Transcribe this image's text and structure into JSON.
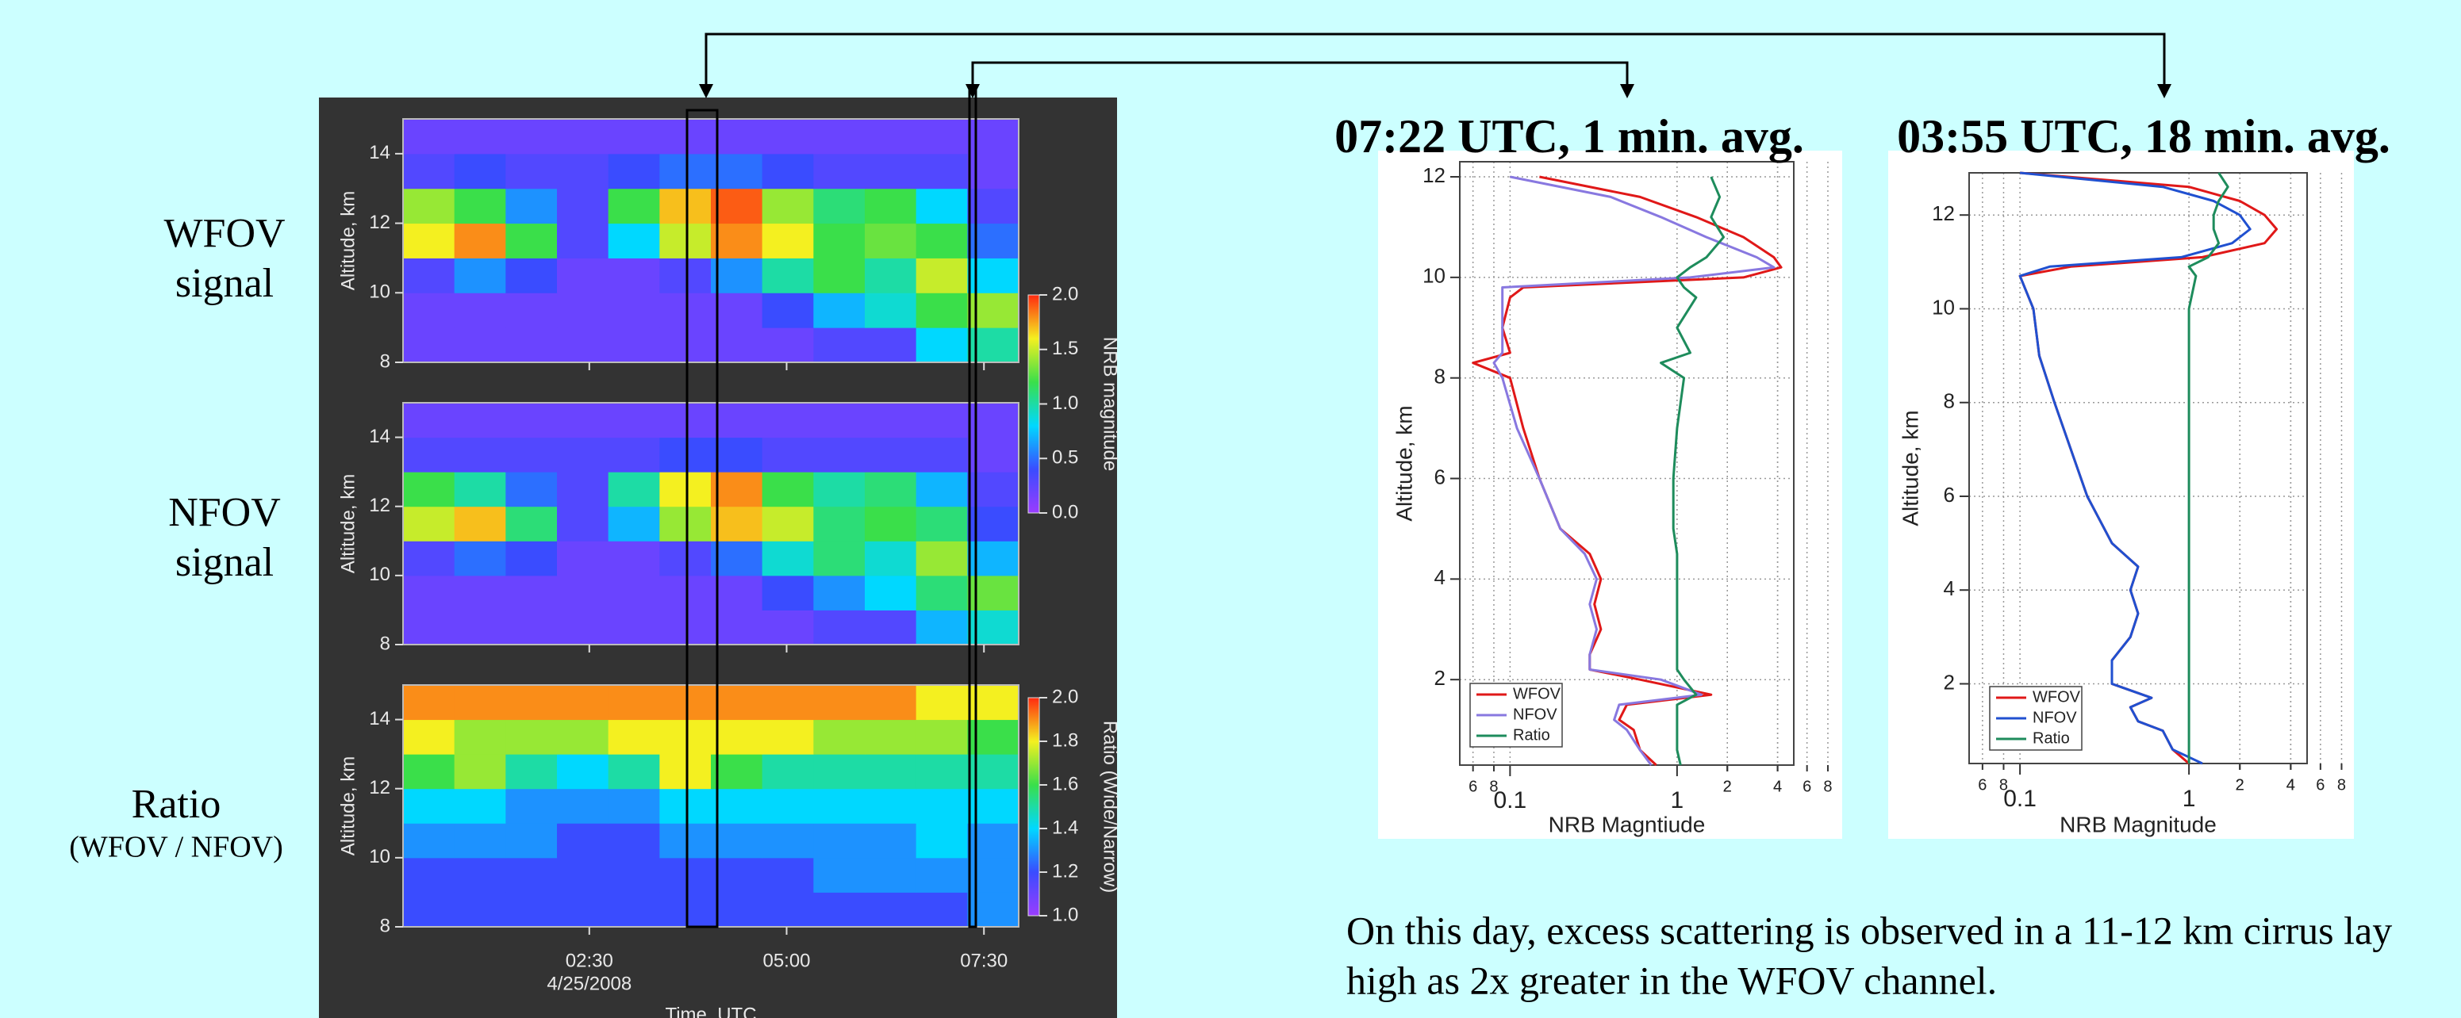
{
  "row_labels": [
    [
      "WFOV",
      "signal"
    ],
    [
      "NFOV",
      "signal"
    ],
    [
      "Ratio",
      "(WFOV / NFOV)"
    ]
  ],
  "caption": [
    "On this day, excess scattering is observed in a 11-12 km cirrus lay",
    "high as 2x greater in the WFOV channel."
  ],
  "chart_data": [
    {
      "type": "heatmap",
      "ylabel": "Altitude, km",
      "xlim": [
        0.14,
        7.94
      ],
      "ylim": [
        8,
        15
      ],
      "yticks": [
        8,
        10,
        12,
        14
      ],
      "xbins": [
        0.14,
        0.79,
        1.44,
        2.09,
        2.74,
        3.39,
        4.04,
        4.69,
        5.34,
        5.99,
        6.64,
        7.29,
        7.94
      ],
      "ybins": [
        8,
        9,
        10,
        11,
        12,
        13,
        14,
        15
      ],
      "clim": [
        0,
        2
      ],
      "colormap": [
        "#9a3cff",
        "#3a4cff",
        "#00d8ff",
        "#3adf4a",
        "#f4f020",
        "#ff2a10"
      ],
      "colorbar": {
        "label": "NRB magnitude",
        "ticks": [
          {
            "value": 0,
            "label": "0.0"
          },
          0.5,
          {
            "value": 1,
            "label": "1.0"
          },
          1.5,
          {
            "value": 2,
            "label": "2.0"
          }
        ]
      },
      "z": [
        [
          0.2,
          0.2,
          0.2,
          0.2,
          0.2,
          0.2,
          0.2,
          0.2,
          0.3,
          0.3,
          0.8,
          1.0
        ],
        [
          0.2,
          0.2,
          0.2,
          0.2,
          0.2,
          0.2,
          0.2,
          0.4,
          0.7,
          0.9,
          1.2,
          1.4
        ],
        [
          0.3,
          0.6,
          0.4,
          0.2,
          0.2,
          0.3,
          0.6,
          1.0,
          1.2,
          1.0,
          1.5,
          0.8
        ],
        [
          1.6,
          1.8,
          1.2,
          0.3,
          0.8,
          1.5,
          1.8,
          1.6,
          1.2,
          1.3,
          1.2,
          0.5
        ],
        [
          1.4,
          1.2,
          0.6,
          0.3,
          1.2,
          1.7,
          1.9,
          1.4,
          1.1,
          1.2,
          0.8,
          0.3
        ],
        [
          0.3,
          0.4,
          0.3,
          0.3,
          0.4,
          0.5,
          0.5,
          0.4,
          0.3,
          0.3,
          0.3,
          0.2
        ],
        [
          0.2,
          0.2,
          0.2,
          0.2,
          0.2,
          0.2,
          0.2,
          0.2,
          0.2,
          0.2,
          0.2,
          0.2
        ]
      ]
    },
    {
      "type": "heatmap",
      "ylabel": "Altitude, km",
      "xlim": [
        0.14,
        7.94
      ],
      "ylim": [
        8,
        15
      ],
      "yticks": [
        8,
        10,
        12,
        14
      ],
      "xbins": [
        0.14,
        0.79,
        1.44,
        2.09,
        2.74,
        3.39,
        4.04,
        4.69,
        5.34,
        5.99,
        6.64,
        7.29,
        7.94
      ],
      "ybins": [
        8,
        9,
        10,
        11,
        12,
        13,
        14,
        15
      ],
      "clim": [
        0,
        2
      ],
      "colormap": [
        "#9a3cff",
        "#3a4cff",
        "#00d8ff",
        "#3adf4a",
        "#f4f020",
        "#ff2a10"
      ],
      "z": [
        [
          0.2,
          0.2,
          0.2,
          0.2,
          0.2,
          0.2,
          0.2,
          0.2,
          0.3,
          0.3,
          0.7,
          0.9
        ],
        [
          0.2,
          0.2,
          0.2,
          0.2,
          0.2,
          0.2,
          0.2,
          0.4,
          0.6,
          0.8,
          1.1,
          1.3
        ],
        [
          0.3,
          0.5,
          0.4,
          0.2,
          0.2,
          0.3,
          0.5,
          0.9,
          1.1,
          0.9,
          1.4,
          0.7
        ],
        [
          1.5,
          1.7,
          1.1,
          0.3,
          0.7,
          1.4,
          1.7,
          1.5,
          1.1,
          1.2,
          1.1,
          0.4
        ],
        [
          1.2,
          1.0,
          0.5,
          0.3,
          1.0,
          1.6,
          1.8,
          1.2,
          1.0,
          1.1,
          0.7,
          0.3
        ],
        [
          0.3,
          0.3,
          0.3,
          0.3,
          0.3,
          0.4,
          0.4,
          0.3,
          0.3,
          0.3,
          0.3,
          0.2
        ],
        [
          0.2,
          0.2,
          0.2,
          0.2,
          0.2,
          0.2,
          0.2,
          0.2,
          0.2,
          0.2,
          0.2,
          0.2
        ]
      ]
    },
    {
      "type": "heatmap",
      "ylabel": "Altitude, km",
      "xlabel": "Time, UTC",
      "xlim": [
        0.14,
        7.94
      ],
      "ylim": [
        8,
        15
      ],
      "yticks": [
        8,
        10,
        12,
        14
      ],
      "xticks": [
        {
          "value": 2.5,
          "label": "02:30"
        },
        {
          "value": 5,
          "label": "05:00"
        },
        {
          "value": 7.5,
          "label": "07:30"
        }
      ],
      "date": "4/25/2008",
      "xbins": [
        0.14,
        0.79,
        1.44,
        2.09,
        2.74,
        3.39,
        4.04,
        4.69,
        5.34,
        5.99,
        6.64,
        7.29,
        7.94
      ],
      "ybins": [
        8,
        9,
        10,
        11,
        12,
        13,
        14,
        15
      ],
      "clim": [
        1,
        2
      ],
      "colormap": [
        "#9a3cff",
        "#3a4cff",
        "#00d8ff",
        "#3adf4a",
        "#f4f020",
        "#ff2a10"
      ],
      "colorbar": {
        "label": "Ratio (Wide/Narrow)",
        "ticks": [
          {
            "value": 1,
            "label": "1.0"
          },
          1.2,
          1.4,
          1.6,
          1.8,
          {
            "value": 2,
            "label": "2.0"
          }
        ]
      },
      "z": [
        [
          1.2,
          1.2,
          1.2,
          1.2,
          1.2,
          1.2,
          1.2,
          1.2,
          1.2,
          1.2,
          1.2,
          1.3
        ],
        [
          1.2,
          1.2,
          1.2,
          1.2,
          1.2,
          1.2,
          1.2,
          1.2,
          1.3,
          1.3,
          1.3,
          1.3
        ],
        [
          1.3,
          1.3,
          1.3,
          1.2,
          1.2,
          1.3,
          1.3,
          1.3,
          1.3,
          1.3,
          1.4,
          1.3
        ],
        [
          1.4,
          1.4,
          1.3,
          1.3,
          1.3,
          1.4,
          1.4,
          1.4,
          1.4,
          1.4,
          1.4,
          1.4
        ],
        [
          1.6,
          1.7,
          1.5,
          1.4,
          1.5,
          1.8,
          1.6,
          1.5,
          1.5,
          1.5,
          1.5,
          1.5
        ],
        [
          1.8,
          1.7,
          1.7,
          1.7,
          1.8,
          1.8,
          1.8,
          1.8,
          1.7,
          1.7,
          1.7,
          1.6
        ],
        [
          1.9,
          1.9,
          1.9,
          1.9,
          1.9,
          1.9,
          1.9,
          1.9,
          1.9,
          1.9,
          1.8,
          1.8
        ]
      ]
    },
    {
      "type": "line",
      "title": "07:22 UTC, 1 min. avg.",
      "xlabel": "NRB Magntiude",
      "ylabel": "Altitude, km",
      "log_x": true,
      "grid": true,
      "xlim": [
        0.05,
        5
      ],
      "ylim": [
        0.3,
        12.3
      ],
      "xticks": [
        {
          "value": 0.06,
          "label": "6"
        },
        {
          "value": 0.08,
          "label": "8"
        },
        0.1,
        2,
        4,
        6,
        8,
        1,
        2,
        4
      ],
      "yticks": [
        2,
        4,
        6,
        8,
        10,
        12
      ],
      "y": [
        12,
        11.6,
        11.2,
        10.8,
        10.4,
        10.2,
        10.0,
        9.8,
        9.6,
        9.0,
        8.5,
        8.3,
        8.0,
        7.0,
        6.0,
        5.0,
        4.5,
        4.0,
        3.5,
        3.0,
        2.5,
        2.2,
        2.0,
        1.7,
        1.5,
        1.2,
        1.0,
        0.6,
        0.3
      ],
      "series": [
        {
          "name": "WFOV",
          "color": "#e01818",
          "values": [
            0.15,
            0.6,
            1.3,
            2.5,
            3.8,
            4.2,
            2.5,
            0.12,
            0.1,
            0.09,
            0.1,
            0.06,
            0.1,
            0.12,
            0.15,
            0.2,
            0.3,
            0.35,
            0.32,
            0.35,
            0.3,
            0.3,
            0.6,
            1.6,
            0.5,
            0.45,
            0.55,
            0.6,
            0.75
          ]
        },
        {
          "name": "NFOV",
          "color": "#8878e0",
          "values": [
            0.1,
            0.4,
            0.8,
            1.5,
            3.0,
            3.8,
            1.2,
            0.09,
            0.09,
            0.09,
            0.09,
            0.08,
            0.09,
            0.11,
            0.15,
            0.2,
            0.28,
            0.33,
            0.3,
            0.33,
            0.3,
            0.3,
            0.8,
            1.4,
            0.45,
            0.42,
            0.5,
            0.6,
            0.7
          ]
        },
        {
          "name": "Ratio",
          "color": "#1e8c5c",
          "values": [
            1.6,
            1.8,
            1.6,
            1.9,
            1.5,
            1.2,
            1.0,
            1.1,
            1.3,
            1.0,
            1.2,
            0.8,
            1.1,
            1.0,
            0.95,
            0.95,
            1.0,
            1.0,
            1.0,
            1.0,
            1.0,
            1.0,
            1.1,
            1.3,
            1.0,
            1.0,
            1.0,
            1.0,
            1.05
          ]
        }
      ]
    },
    {
      "type": "line",
      "title": "03:55 UTC, 18 min. avg.",
      "xlabel": "NRB Magnitude",
      "ylabel": "Altitude, km",
      "log_x": true,
      "grid": true,
      "xlim": [
        0.05,
        5
      ],
      "ylim": [
        0.3,
        12.9
      ],
      "xticks": [
        {
          "value": 0.06,
          "label": "6"
        },
        {
          "value": 0.08,
          "label": "8"
        },
        0.1,
        2,
        4,
        6,
        8,
        1,
        2,
        4
      ],
      "yticks": [
        2,
        4,
        6,
        8,
        10,
        12
      ],
      "y": [
        12.9,
        12.6,
        12.3,
        12.0,
        11.7,
        11.4,
        11.1,
        10.9,
        10.7,
        10.0,
        9.0,
        8.0,
        7.0,
        6.0,
        5.0,
        4.5,
        4.0,
        3.5,
        3.0,
        2.5,
        2.0,
        1.7,
        1.5,
        1.2,
        1.0,
        0.6,
        0.3
      ],
      "series": [
        {
          "name": "WFOV",
          "color": "#e01818",
          "values": [
            0.1,
            1.0,
            2.0,
            2.8,
            3.3,
            2.8,
            1.2,
            0.2,
            0.1,
            0.12,
            0.13,
            0.16,
            0.2,
            0.25,
            0.35,
            0.5,
            0.45,
            0.5,
            0.45,
            0.35,
            0.35,
            0.6,
            0.45,
            0.5,
            0.7,
            0.8,
            1.0
          ]
        },
        {
          "name": "NFOV",
          "color": "#2050d0",
          "values": [
            0.1,
            0.7,
            1.4,
            2.0,
            2.3,
            1.8,
            0.9,
            0.15,
            0.1,
            0.12,
            0.13,
            0.16,
            0.2,
            0.25,
            0.35,
            0.5,
            0.45,
            0.5,
            0.45,
            0.35,
            0.35,
            0.6,
            0.45,
            0.5,
            0.7,
            0.8,
            1.2
          ]
        },
        {
          "name": "Ratio",
          "color": "#1e8c5c",
          "values": [
            1.5,
            1.7,
            1.5,
            1.4,
            1.4,
            1.5,
            1.3,
            1.0,
            1.1,
            1.0,
            1.0,
            1.0,
            1.0,
            1.0,
            1.0,
            1.0,
            1.0,
            1.0,
            1.0,
            1.0,
            1.0,
            1.0,
            1.0,
            1.0,
            1.0,
            1.0,
            1.0
          ]
        }
      ]
    }
  ]
}
